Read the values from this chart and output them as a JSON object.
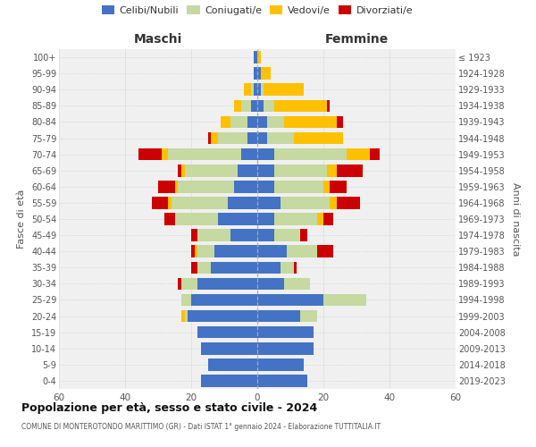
{
  "age_groups": [
    "0-4",
    "5-9",
    "10-14",
    "15-19",
    "20-24",
    "25-29",
    "30-34",
    "35-39",
    "40-44",
    "45-49",
    "50-54",
    "55-59",
    "60-64",
    "65-69",
    "70-74",
    "75-79",
    "80-84",
    "85-89",
    "90-94",
    "95-99",
    "100+"
  ],
  "birth_years": [
    "2019-2023",
    "2014-2018",
    "2009-2013",
    "2004-2008",
    "1999-2003",
    "1994-1998",
    "1989-1993",
    "1984-1988",
    "1979-1983",
    "1974-1978",
    "1969-1973",
    "1964-1968",
    "1959-1963",
    "1954-1958",
    "1949-1953",
    "1944-1948",
    "1939-1943",
    "1934-1938",
    "1929-1933",
    "1924-1928",
    "≤ 1923"
  ],
  "maschi": {
    "celibi": [
      17,
      15,
      17,
      18,
      21,
      20,
      18,
      14,
      13,
      8,
      12,
      9,
      7,
      6,
      5,
      3,
      3,
      2,
      1,
      1,
      1
    ],
    "coniugati": [
      0,
      0,
      0,
      0,
      1,
      3,
      5,
      4,
      5,
      10,
      13,
      17,
      17,
      16,
      22,
      9,
      5,
      3,
      1,
      0,
      0
    ],
    "vedovi": [
      0,
      0,
      0,
      0,
      1,
      0,
      0,
      0,
      1,
      0,
      0,
      1,
      1,
      1,
      2,
      2,
      3,
      2,
      2,
      0,
      0
    ],
    "divorziati": [
      0,
      0,
      0,
      0,
      0,
      0,
      1,
      2,
      1,
      2,
      3,
      5,
      5,
      1,
      7,
      1,
      0,
      0,
      0,
      0,
      0
    ]
  },
  "femmine": {
    "nubili": [
      15,
      14,
      17,
      17,
      13,
      20,
      8,
      7,
      9,
      5,
      5,
      7,
      5,
      5,
      5,
      3,
      3,
      2,
      1,
      1,
      0
    ],
    "coniugate": [
      0,
      0,
      0,
      0,
      5,
      13,
      8,
      4,
      9,
      8,
      13,
      15,
      15,
      16,
      22,
      8,
      5,
      3,
      1,
      0,
      0
    ],
    "vedove": [
      0,
      0,
      0,
      0,
      0,
      0,
      0,
      0,
      0,
      0,
      2,
      2,
      2,
      3,
      7,
      15,
      16,
      16,
      12,
      3,
      1
    ],
    "divorziate": [
      0,
      0,
      0,
      0,
      0,
      0,
      0,
      1,
      5,
      2,
      3,
      7,
      5,
      8,
      3,
      0,
      2,
      1,
      0,
      0,
      0
    ]
  },
  "colors": {
    "celibi": "#4472c4",
    "coniugati": "#c5d9a0",
    "vedovi": "#ffc000",
    "divorziati": "#cc0000"
  },
  "title1": "Popolazione per età, sesso e stato civile - 2024",
  "title2": "COMUNE DI MONTEROTONDO MARITTIMO (GR) - Dati ISTAT 1° gennaio 2024 - Elaborazione TUTTITALIA.IT",
  "xlabel_left": "Maschi",
  "xlabel_right": "Femmine",
  "ylabel_left": "Fasce di età",
  "ylabel_right": "Anni di nascita",
  "xlim": 60,
  "background_color": "#ffffff",
  "grid_color": "#cccccc",
  "legend_labels": [
    "Celibi/Nubili",
    "Coniugati/e",
    "Vedovi/e",
    "Divorziati/e"
  ]
}
